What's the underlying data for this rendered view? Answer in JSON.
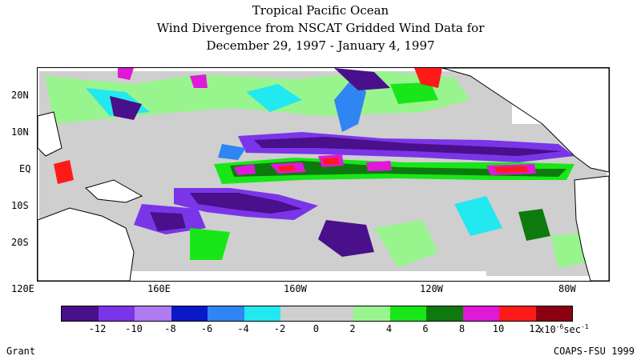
{
  "title": {
    "line1": "Tropical Pacific Ocean",
    "line2": "Wind Divergence from NSCAT Gridded Wind Data for",
    "line3": "December 29, 1997 - January 4, 1997"
  },
  "axes": {
    "lat_labels": [
      "20N",
      "10N",
      "EQ",
      "10S",
      "20S"
    ],
    "lon_labels": [
      "120E",
      "160E",
      "160W",
      "120W",
      "80W"
    ]
  },
  "colorbar": {
    "colors": [
      "#4a0f8a",
      "#7a35e8",
      "#b07af0",
      "#0a18c8",
      "#2f86f2",
      "#22e8f0",
      "#cfcfcf",
      "#cfcfcf",
      "#98f58e",
      "#18e618",
      "#0e7a0e",
      "#e018d8",
      "#ff1a1a",
      "#8a0010"
    ],
    "tick_labels": [
      "-12",
      "-10",
      "-8",
      "-6",
      "-4",
      "-2",
      "0",
      "2",
      "4",
      "6",
      "8",
      "10",
      "12"
    ],
    "units_prefix": "x10",
    "units_exp": "-6",
    "units_suffix": "sec",
    "units_suffix_exp": "-1"
  },
  "credits": {
    "left": "Grant",
    "right": "COAPS-FSU 1999"
  }
}
